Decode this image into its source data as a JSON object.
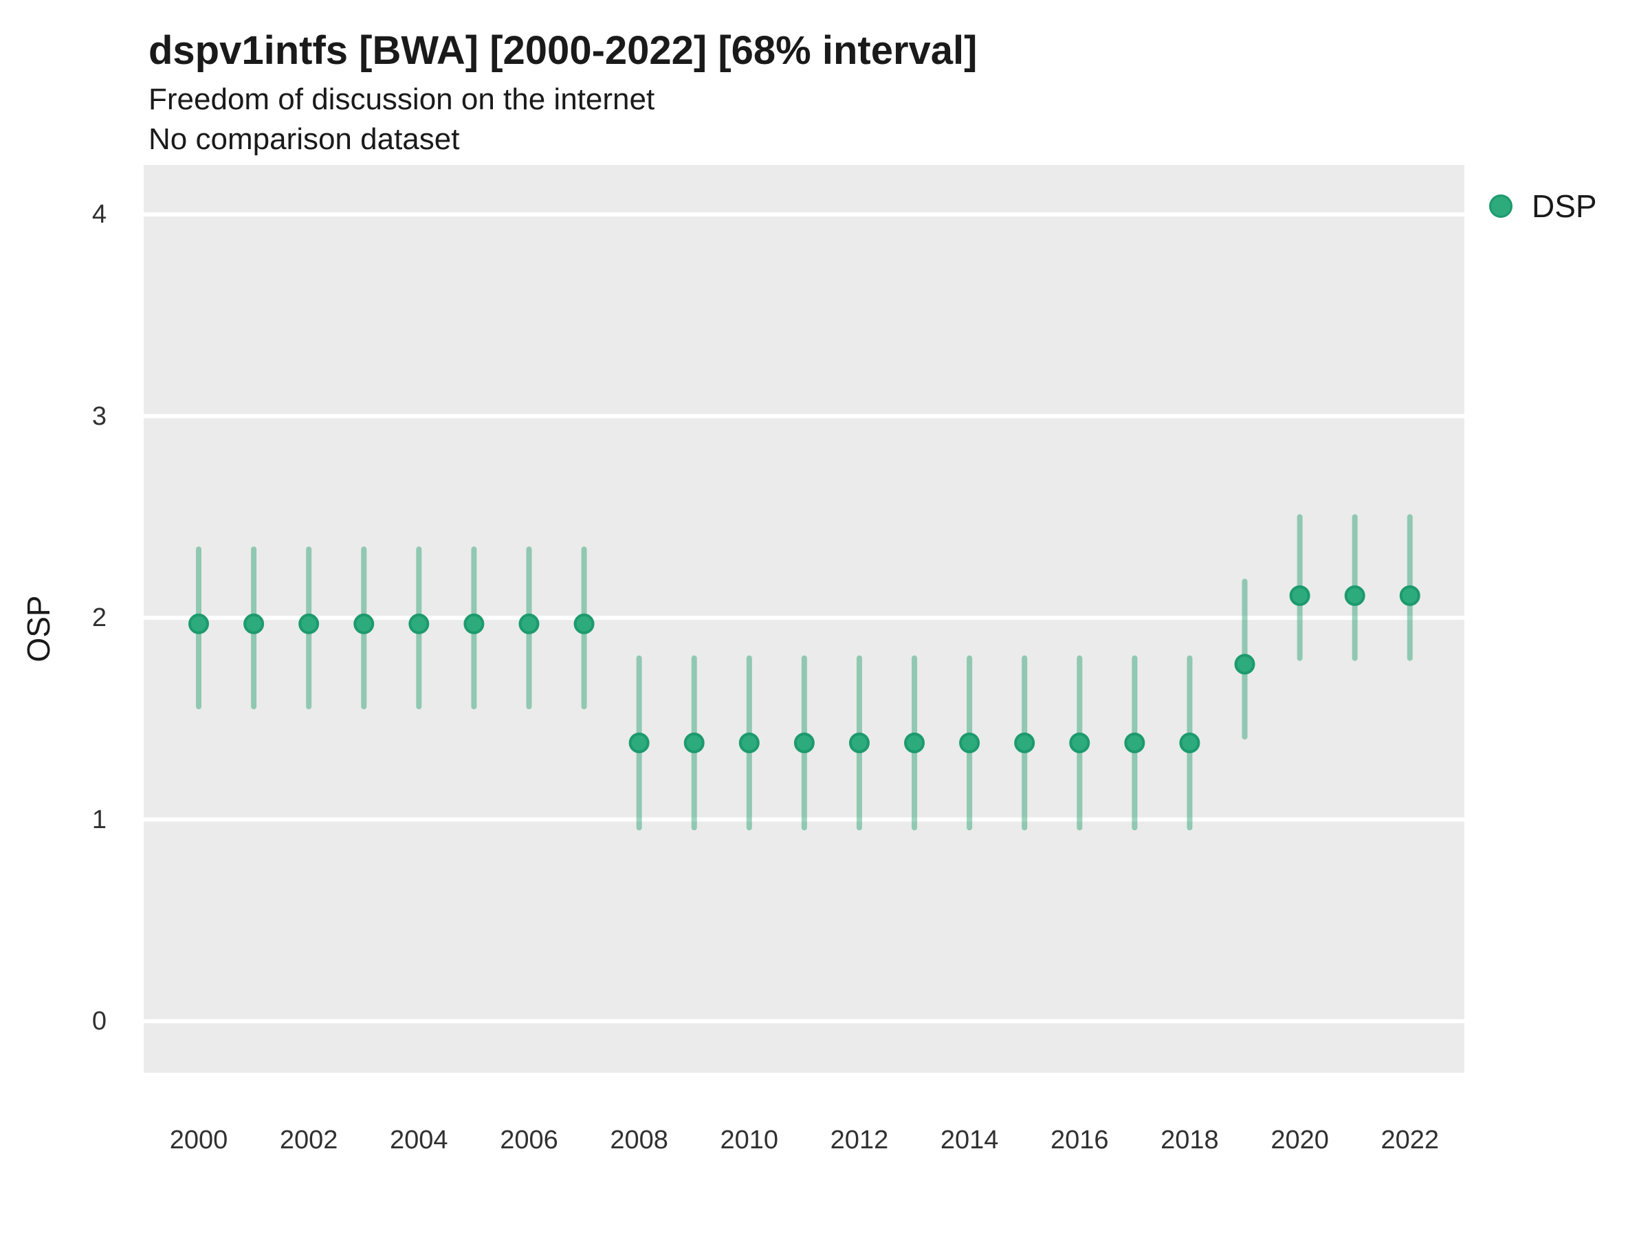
{
  "header": {
    "title": "dspv1intfs [BWA] [2000-2022] [68% interval]",
    "subtitle_line1": "Freedom of discussion on the internet",
    "subtitle_line2": "No comparison dataset"
  },
  "chart_data": {
    "type": "scatter",
    "title": "dspv1intfs [BWA] [2000-2022] [68% interval]",
    "subtitle": "Freedom of discussion on the internet",
    "subtitle2": "No comparison dataset",
    "interval_label": "68% interval",
    "xlabel": "",
    "ylabel": "OSP",
    "ylim": [
      -0.26,
      4.25
    ],
    "yticks": [
      4,
      3,
      2,
      1,
      0
    ],
    "xticks": [
      2000,
      2002,
      2004,
      2006,
      2008,
      2010,
      2012,
      2014,
      2016,
      2018,
      2020,
      2022
    ],
    "grid": "major-horizontal-only",
    "legend_position": "right-top",
    "legend": [
      {
        "label": "DSP"
      }
    ],
    "series_name": "DSP",
    "points": [
      {
        "year": 2000,
        "est": 1.97,
        "lo": 1.56,
        "hi": 2.34
      },
      {
        "year": 2001,
        "est": 1.97,
        "lo": 1.56,
        "hi": 2.34
      },
      {
        "year": 2002,
        "est": 1.97,
        "lo": 1.56,
        "hi": 2.34
      },
      {
        "year": 2003,
        "est": 1.97,
        "lo": 1.56,
        "hi": 2.34
      },
      {
        "year": 2004,
        "est": 1.97,
        "lo": 1.56,
        "hi": 2.34
      },
      {
        "year": 2005,
        "est": 1.97,
        "lo": 1.56,
        "hi": 2.34
      },
      {
        "year": 2006,
        "est": 1.97,
        "lo": 1.56,
        "hi": 2.34
      },
      {
        "year": 2007,
        "est": 1.97,
        "lo": 1.56,
        "hi": 2.34
      },
      {
        "year": 2008,
        "est": 1.38,
        "lo": 0.96,
        "hi": 1.8
      },
      {
        "year": 2009,
        "est": 1.38,
        "lo": 0.96,
        "hi": 1.8
      },
      {
        "year": 2010,
        "est": 1.38,
        "lo": 0.96,
        "hi": 1.8
      },
      {
        "year": 2011,
        "est": 1.38,
        "lo": 0.96,
        "hi": 1.8
      },
      {
        "year": 2012,
        "est": 1.38,
        "lo": 0.96,
        "hi": 1.8
      },
      {
        "year": 2013,
        "est": 1.38,
        "lo": 0.96,
        "hi": 1.8
      },
      {
        "year": 2014,
        "est": 1.38,
        "lo": 0.96,
        "hi": 1.8
      },
      {
        "year": 2015,
        "est": 1.38,
        "lo": 0.96,
        "hi": 1.8
      },
      {
        "year": 2016,
        "est": 1.38,
        "lo": 0.96,
        "hi": 1.8
      },
      {
        "year": 2017,
        "est": 1.38,
        "lo": 0.96,
        "hi": 1.8
      },
      {
        "year": 2018,
        "est": 1.38,
        "lo": 0.96,
        "hi": 1.8
      },
      {
        "year": 2019,
        "est": 1.77,
        "lo": 1.41,
        "hi": 2.18
      },
      {
        "year": 2020,
        "est": 2.11,
        "lo": 1.8,
        "hi": 2.5
      },
      {
        "year": 2021,
        "est": 2.11,
        "lo": 1.8,
        "hi": 2.5
      },
      {
        "year": 2022,
        "est": 2.11,
        "lo": 1.8,
        "hi": 2.5
      }
    ],
    "colors": {
      "point_fill": "#2DAB7D",
      "point_stroke": "#1D9A6E",
      "interval_bar": "rgba(36,160,112,0.46)",
      "panel_background": "#EBEBEB",
      "gridline": "#FFFFFF"
    }
  }
}
